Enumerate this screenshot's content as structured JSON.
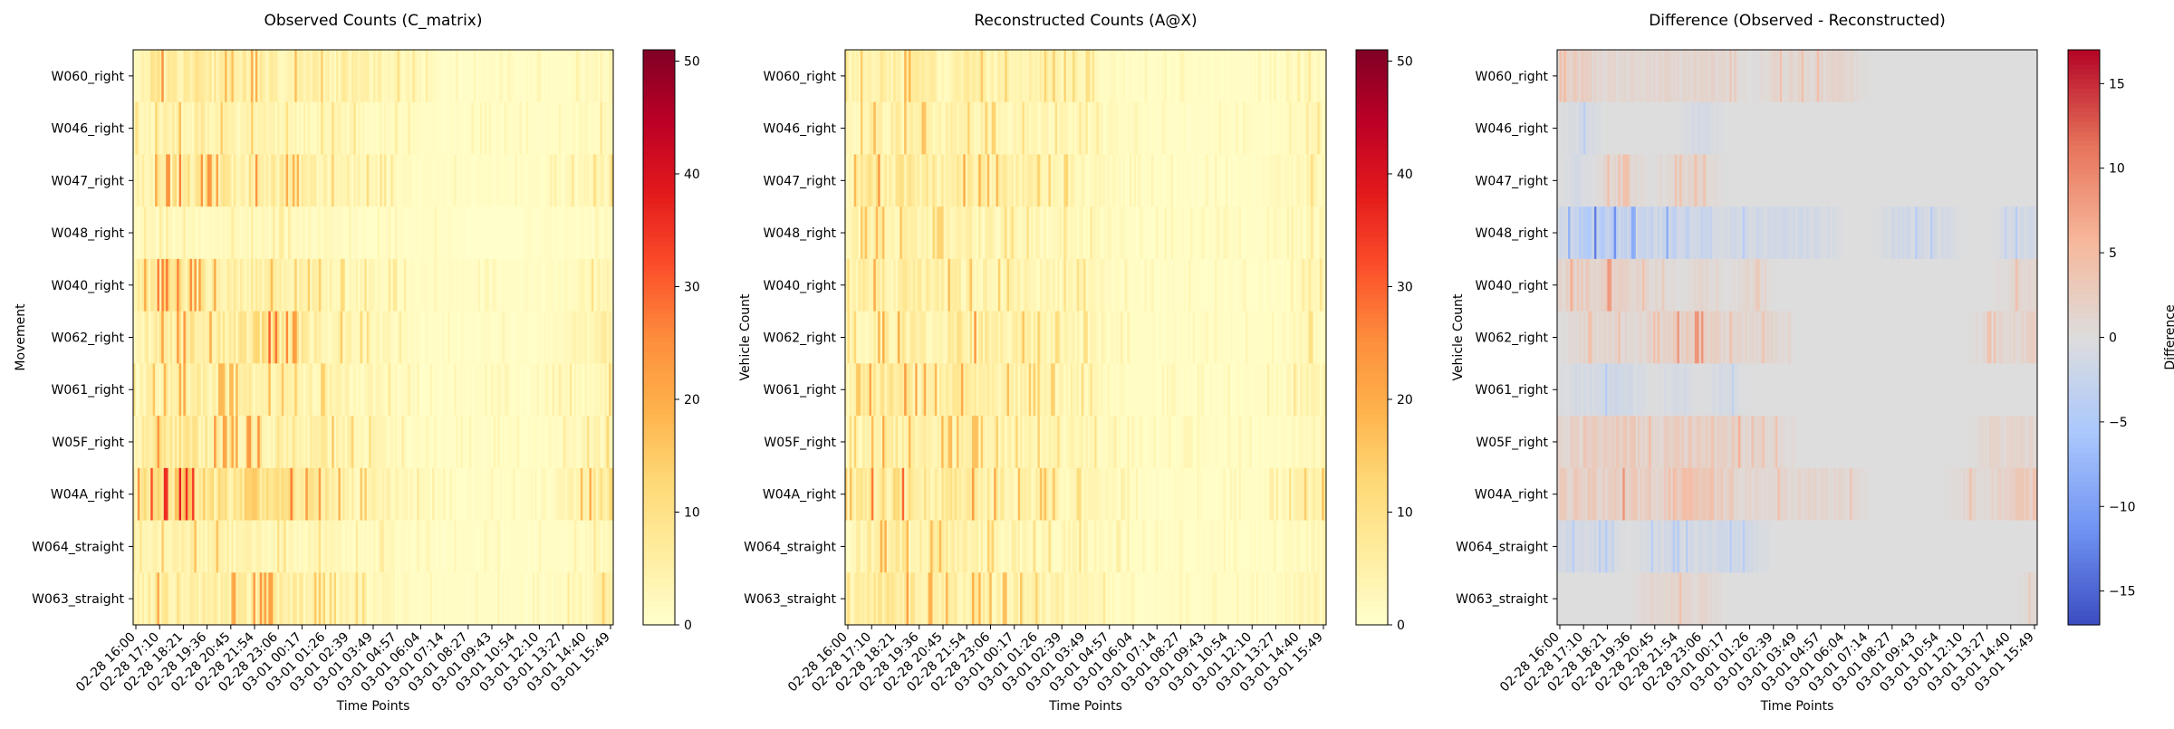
{
  "colors": {
    "ylorrd": [
      "#ffffcc",
      "#ffeda0",
      "#fed976",
      "#feb24c",
      "#fd8d3c",
      "#fc4e2a",
      "#e31a1c",
      "#bd0026",
      "#800026"
    ],
    "coolwarm": [
      "#3b4cc0",
      "#7093f3",
      "#aac7fd",
      "#dddddd",
      "#f7b89c",
      "#e7745b",
      "#b40426"
    ]
  },
  "chart_data": [
    {
      "type": "heatmap",
      "title": "Observed Counts (C_matrix)",
      "xlabel": "Time Points",
      "ylabel": "Movement",
      "colorbar_label": "Vehicle Count",
      "colormap": "ylorrd",
      "clim": [
        0,
        51
      ],
      "colorbar_ticks": [
        0,
        10,
        20,
        30,
        40,
        50
      ],
      "rows": [
        "W060_right",
        "W046_right",
        "W047_right",
        "W048_right",
        "W040_right",
        "W062_right",
        "W061_right",
        "W05F_right",
        "W04A_right",
        "W064_straight",
        "W063_straight"
      ],
      "x_tick_labels": [
        "02-28 16:00",
        "02-28 17:10",
        "02-28 18:21",
        "02-28 19:36",
        "02-28 20:45",
        "02-28 21:54",
        "02-28 23:06",
        "03-01 00:17",
        "03-01 01:26",
        "03-01 02:39",
        "03-01 03:49",
        "03-01 04:57",
        "03-01 06:04",
        "03-01 07:14",
        "03-01 08:27",
        "03-01 09:43",
        "03-01 10:54",
        "03-01 12:10",
        "03-01 13:27",
        "03-01 14:40",
        "03-01 15:49"
      ],
      "row_profiles": [
        [
          4,
          7,
          7,
          6,
          5,
          6,
          5,
          5,
          4,
          5,
          4,
          3,
          2,
          1,
          1,
          1,
          1,
          1,
          1,
          2,
          3
        ],
        [
          3,
          4,
          5,
          5,
          4,
          4,
          3,
          3,
          3,
          3,
          2,
          2,
          1,
          1,
          1,
          1,
          1,
          1,
          1,
          2,
          3
        ],
        [
          4,
          6,
          8,
          7,
          6,
          7,
          6,
          5,
          4,
          4,
          3,
          2,
          1,
          1,
          1,
          1,
          1,
          1,
          2,
          3,
          4
        ],
        [
          2,
          2,
          2,
          2,
          2,
          2,
          2,
          2,
          2,
          1,
          1,
          1,
          1,
          1,
          0,
          0,
          0,
          1,
          1,
          1,
          2
        ],
        [
          4,
          8,
          8,
          6,
          6,
          5,
          5,
          4,
          4,
          3,
          3,
          2,
          1,
          1,
          1,
          1,
          1,
          1,
          2,
          3,
          4
        ],
        [
          3,
          6,
          7,
          6,
          6,
          9,
          8,
          6,
          5,
          4,
          3,
          2,
          1,
          1,
          1,
          1,
          1,
          1,
          2,
          4,
          5
        ],
        [
          3,
          5,
          6,
          5,
          5,
          5,
          5,
          4,
          4,
          3,
          3,
          2,
          1,
          1,
          1,
          1,
          1,
          1,
          2,
          3,
          4
        ],
        [
          4,
          7,
          8,
          7,
          6,
          7,
          6,
          6,
          5,
          4,
          3,
          2,
          1,
          1,
          1,
          1,
          1,
          1,
          2,
          3,
          4
        ],
        [
          6,
          10,
          11,
          9,
          8,
          10,
          9,
          7,
          6,
          5,
          4,
          3,
          2,
          1,
          1,
          1,
          1,
          2,
          3,
          6,
          8
        ],
        [
          2,
          4,
          5,
          5,
          4,
          4,
          3,
          3,
          3,
          2,
          2,
          2,
          1,
          1,
          1,
          1,
          1,
          1,
          1,
          2,
          3
        ],
        [
          3,
          6,
          7,
          6,
          6,
          7,
          6,
          5,
          4,
          4,
          3,
          2,
          1,
          1,
          1,
          1,
          1,
          1,
          2,
          3,
          5
        ]
      ]
    },
    {
      "type": "heatmap",
      "title": "Reconstructed Counts (A@X)",
      "xlabel": "Time Points",
      "ylabel": "",
      "colorbar_label": "Vehicle Count",
      "colormap": "ylorrd",
      "clim": [
        0,
        51
      ],
      "colorbar_ticks": [
        0,
        10,
        20,
        30,
        40,
        50
      ],
      "rows": [
        "W060_right",
        "W046_right",
        "W047_right",
        "W048_right",
        "W040_right",
        "W062_right",
        "W061_right",
        "W05F_right",
        "W04A_right",
        "W064_straight",
        "W063_straight"
      ],
      "x_tick_labels": [
        "02-28 16:00",
        "02-28 17:10",
        "02-28 18:21",
        "02-28 19:36",
        "02-28 20:45",
        "02-28 21:54",
        "02-28 23:06",
        "03-01 00:17",
        "03-01 01:26",
        "03-01 02:39",
        "03-01 03:49",
        "03-01 04:57",
        "03-01 06:04",
        "03-01 07:14",
        "03-01 08:27",
        "03-01 09:43",
        "03-01 10:54",
        "03-01 12:10",
        "03-01 13:27",
        "03-01 14:40",
        "03-01 15:49"
      ],
      "row_profiles": [
        [
          3,
          5,
          6,
          5,
          4,
          5,
          4,
          4,
          4,
          4,
          3,
          2,
          1,
          1,
          1,
          1,
          1,
          1,
          1,
          2,
          3
        ],
        [
          3,
          5,
          5,
          5,
          4,
          4,
          4,
          3,
          3,
          3,
          2,
          2,
          1,
          1,
          1,
          1,
          1,
          1,
          1,
          2,
          3
        ],
        [
          4,
          7,
          7,
          6,
          6,
          6,
          5,
          5,
          4,
          4,
          3,
          2,
          1,
          1,
          1,
          1,
          1,
          1,
          2,
          3,
          4
        ],
        [
          3,
          5,
          5,
          4,
          4,
          4,
          4,
          3,
          3,
          3,
          2,
          2,
          1,
          1,
          1,
          1,
          1,
          1,
          1,
          2,
          3
        ],
        [
          3,
          6,
          6,
          5,
          5,
          5,
          4,
          4,
          3,
          3,
          3,
          2,
          1,
          1,
          1,
          1,
          1,
          1,
          1,
          2,
          3
        ],
        [
          3,
          5,
          6,
          5,
          5,
          7,
          6,
          5,
          4,
          3,
          3,
          2,
          1,
          1,
          1,
          1,
          1,
          1,
          1,
          3,
          3
        ],
        [
          3,
          6,
          7,
          6,
          5,
          6,
          5,
          5,
          4,
          4,
          3,
          2,
          1,
          1,
          1,
          1,
          1,
          1,
          2,
          3,
          4
        ],
        [
          3,
          5,
          6,
          5,
          5,
          5,
          4,
          4,
          4,
          3,
          3,
          2,
          1,
          1,
          1,
          1,
          1,
          1,
          1,
          2,
          3
        ],
        [
          4,
          8,
          9,
          7,
          6,
          7,
          6,
          5,
          5,
          4,
          3,
          2,
          1,
          1,
          1,
          1,
          1,
          1,
          2,
          4,
          5
        ],
        [
          3,
          5,
          6,
          5,
          5,
          5,
          4,
          4,
          3,
          3,
          3,
          2,
          1,
          1,
          1,
          1,
          1,
          1,
          1,
          2,
          3
        ],
        [
          3,
          6,
          7,
          6,
          5,
          6,
          5,
          5,
          4,
          4,
          3,
          2,
          1,
          1,
          1,
          1,
          1,
          1,
          2,
          3,
          4
        ]
      ]
    },
    {
      "type": "heatmap",
      "title": "Difference (Observed - Reconstructed)",
      "xlabel": "Time Points",
      "ylabel": "",
      "colorbar_label": "Difference",
      "colormap": "coolwarm",
      "clim": [
        -17,
        17
      ],
      "colorbar_ticks": [
        -15,
        -10,
        -5,
        0,
        5,
        10,
        15
      ],
      "rows": [
        "W060_right",
        "W046_right",
        "W047_right",
        "W048_right",
        "W040_right",
        "W062_right",
        "W061_right",
        "W05F_right",
        "W04A_right",
        "W064_straight",
        "W063_straight"
      ],
      "x_tick_labels": [
        "02-28 16:00",
        "02-28 17:10",
        "02-28 18:21",
        "02-28 19:36",
        "02-28 20:45",
        "02-28 21:54",
        "02-28 23:06",
        "03-01 00:17",
        "03-01 01:26",
        "03-01 02:39",
        "03-01 03:49",
        "03-01 04:57",
        "03-01 06:04",
        "03-01 07:14",
        "03-01 08:27",
        "03-01 09:43",
        "03-01 10:54",
        "03-01 12:10",
        "03-01 13:27",
        "03-01 14:40",
        "03-01 15:49"
      ],
      "row_profiles": [
        [
          1,
          2,
          1,
          1,
          1,
          1,
          1,
          1,
          0,
          1,
          1,
          1,
          1,
          0,
          0,
          0,
          0,
          0,
          0,
          0,
          0
        ],
        [
          0,
          -1,
          0,
          0,
          0,
          0,
          -1,
          0,
          0,
          0,
          0,
          0,
          0,
          0,
          0,
          0,
          0,
          0,
          0,
          0,
          0
        ],
        [
          0,
          -1,
          1,
          1,
          0,
          1,
          1,
          0,
          0,
          0,
          0,
          0,
          0,
          0,
          0,
          0,
          0,
          0,
          0,
          0,
          0
        ],
        [
          -1,
          -3,
          -3,
          -2,
          -2,
          -2,
          -2,
          -1,
          -1,
          -1,
          -1,
          -1,
          0,
          0,
          -1,
          -1,
          -1,
          0,
          0,
          -1,
          -1
        ],
        [
          1,
          2,
          2,
          1,
          1,
          0,
          1,
          0,
          1,
          0,
          0,
          0,
          0,
          0,
          0,
          0,
          0,
          0,
          0,
          1,
          1
        ],
        [
          0,
          1,
          1,
          1,
          1,
          2,
          2,
          1,
          1,
          1,
          0,
          0,
          0,
          0,
          0,
          0,
          0,
          0,
          1,
          1,
          2
        ],
        [
          0,
          -1,
          -1,
          -1,
          0,
          -1,
          0,
          -1,
          0,
          0,
          0,
          0,
          0,
          0,
          0,
          0,
          0,
          0,
          0,
          0,
          0
        ],
        [
          1,
          2,
          2,
          2,
          1,
          2,
          2,
          2,
          1,
          1,
          0,
          0,
          0,
          0,
          0,
          0,
          0,
          0,
          1,
          1,
          1
        ],
        [
          2,
          2,
          2,
          2,
          2,
          3,
          3,
          2,
          1,
          1,
          1,
          1,
          1,
          0,
          0,
          0,
          0,
          1,
          1,
          2,
          3
        ],
        [
          -1,
          -1,
          -1,
          0,
          -1,
          -1,
          -1,
          -1,
          -1,
          0,
          0,
          0,
          0,
          0,
          0,
          0,
          0,
          0,
          0,
          0,
          0
        ],
        [
          0,
          0,
          0,
          0,
          1,
          1,
          1,
          0,
          0,
          0,
          0,
          0,
          0,
          0,
          0,
          0,
          0,
          0,
          0,
          0,
          1
        ]
      ]
    }
  ]
}
